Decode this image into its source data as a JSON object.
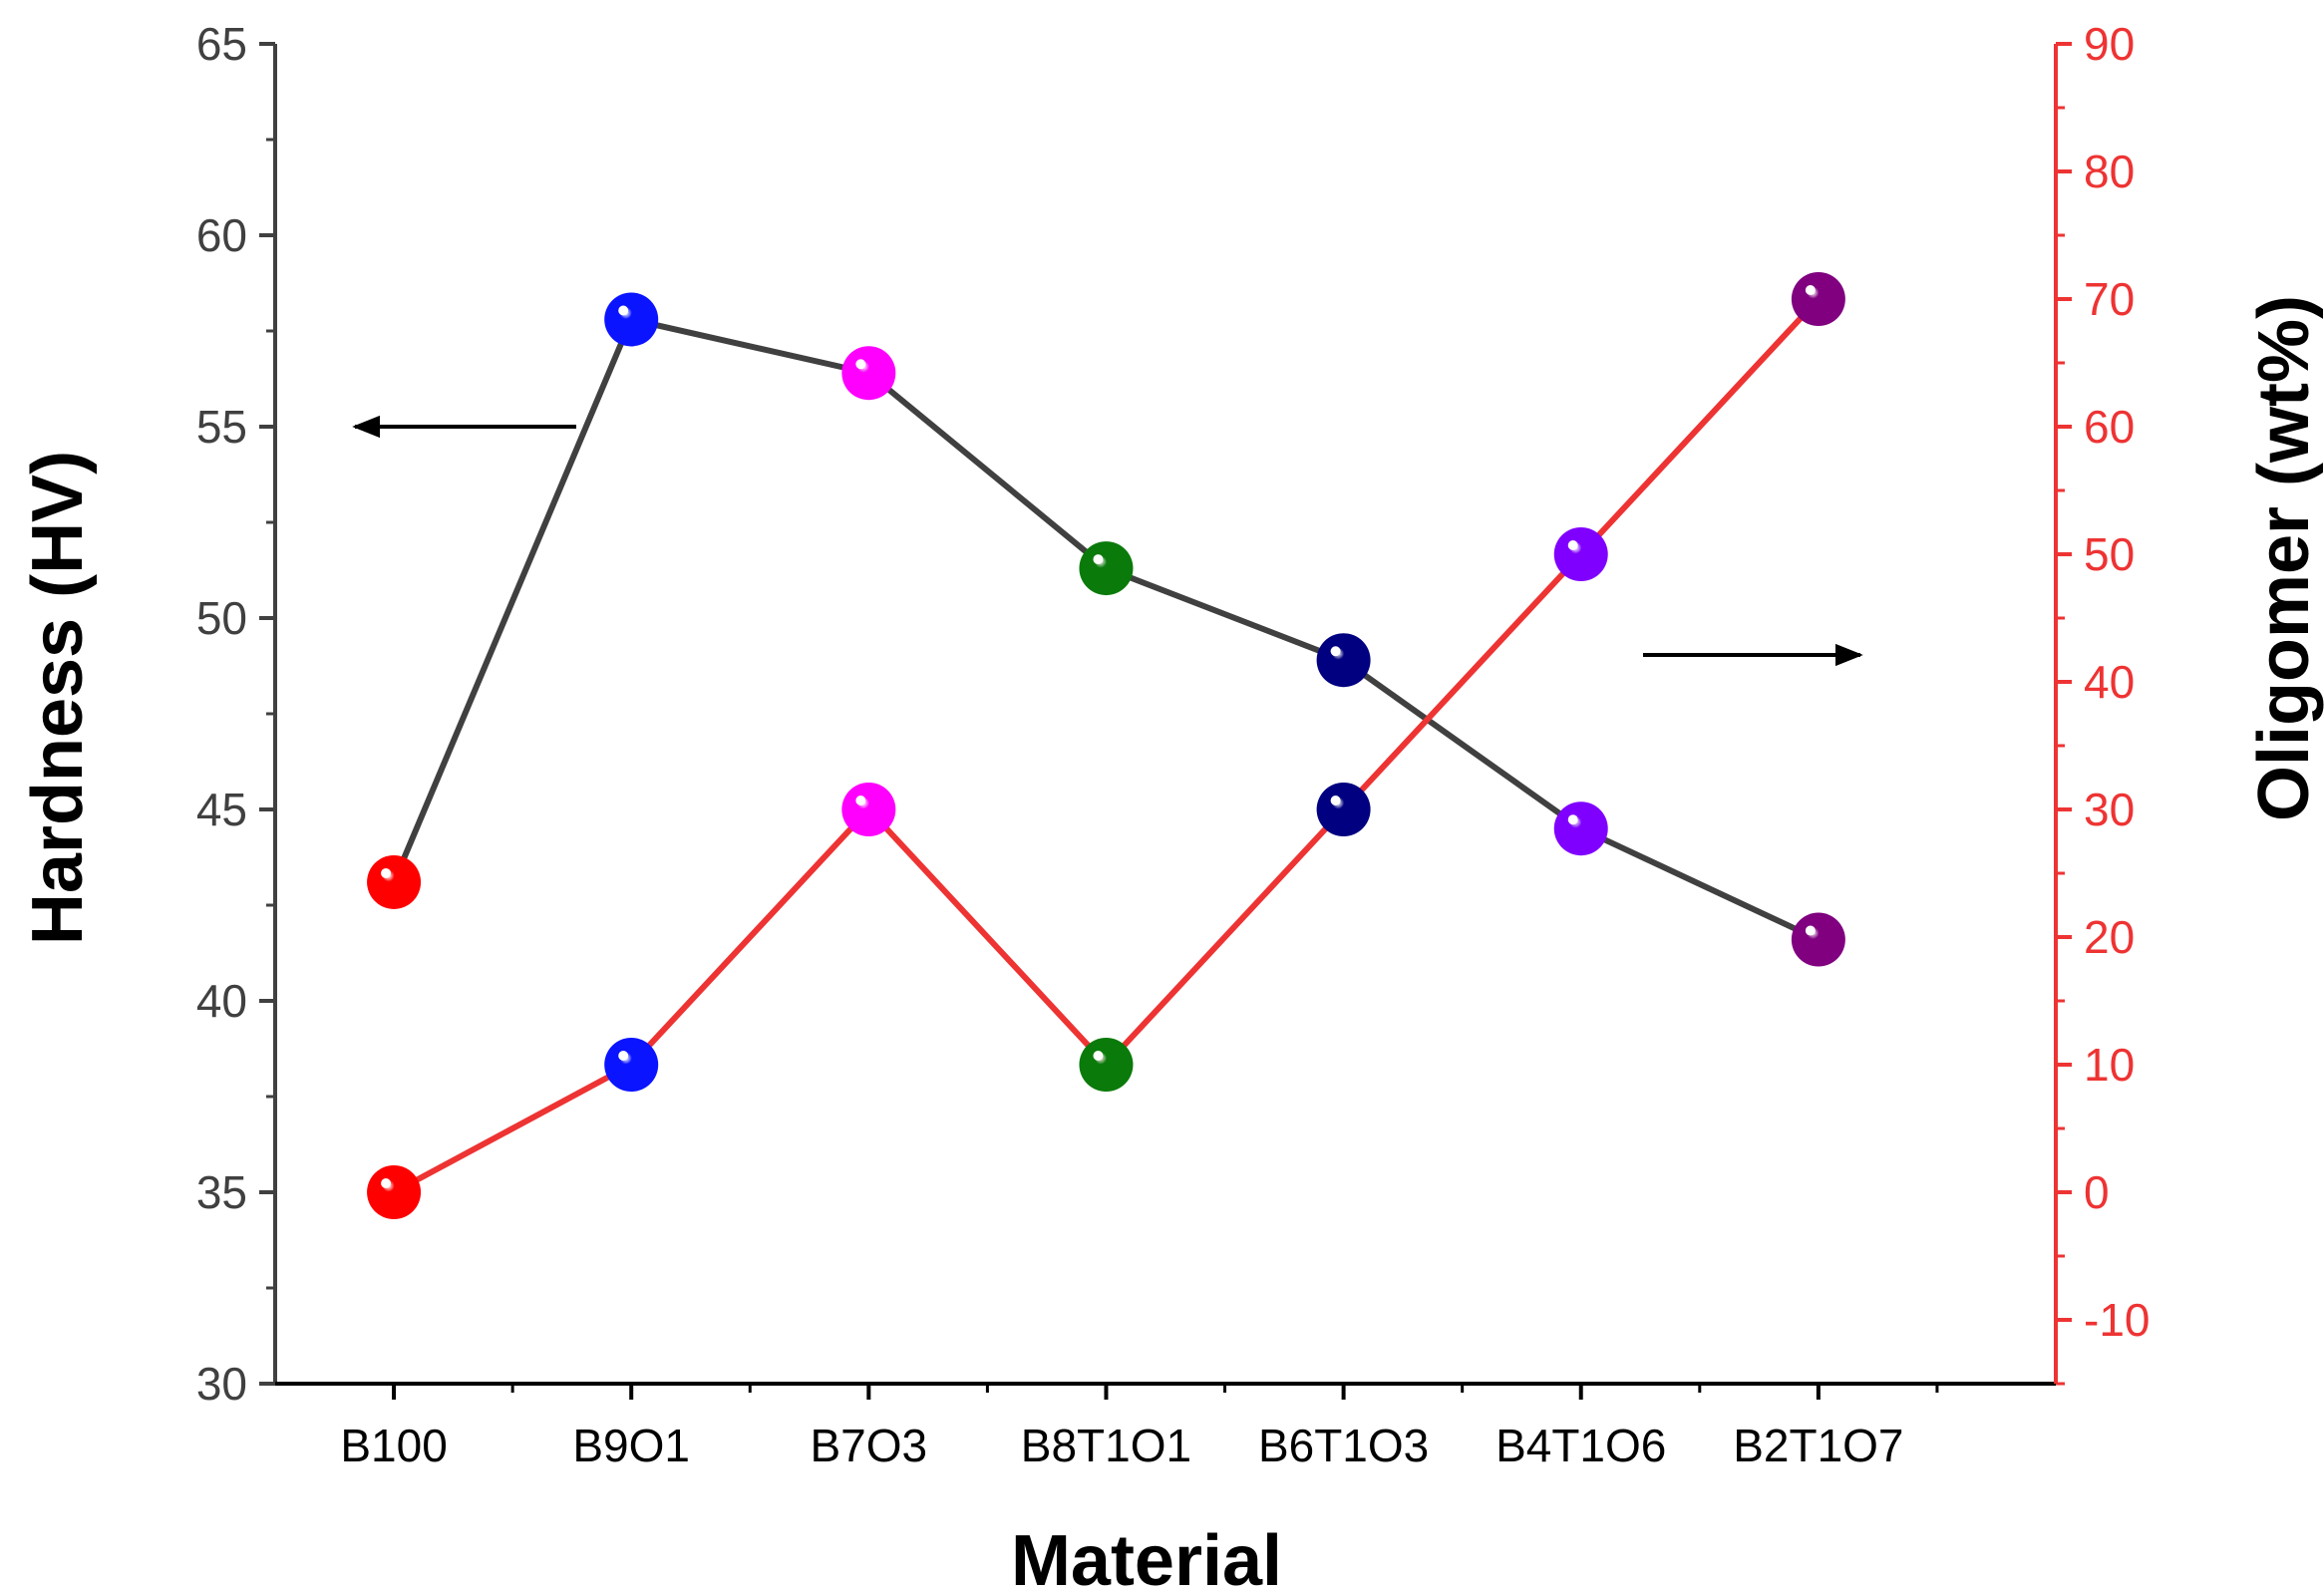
{
  "chart_data": {
    "type": "line",
    "title": "",
    "xlabel": "Material",
    "ylabel_left": "Hardness (HV)",
    "ylabel_right": "Oligomer (wt%)",
    "categories": [
      "B100",
      "B9O1",
      "B7O3",
      "B8T1O1",
      "B6T1O3",
      "B4T1O6",
      "B2T1O7"
    ],
    "point_colors": [
      "#ff0000",
      "#0a14ff",
      "#ff00ff",
      "#0a7a0a",
      "#000080",
      "#8000ff",
      "#800080"
    ],
    "left_axis": {
      "ylim": [
        30,
        65
      ],
      "ticks": [
        "30",
        "35",
        "40",
        "45",
        "50",
        "55",
        "60",
        "65"
      ],
      "color": "#404040"
    },
    "right_axis": {
      "ylim": [
        -15,
        90
      ],
      "ticks": [
        "-10",
        "0",
        "10",
        "20",
        "30",
        "40",
        "50",
        "60",
        "70",
        "80",
        "90"
      ],
      "color": "#ee3333"
    },
    "series": [
      {
        "name": "Hardness (HV)",
        "axis": "left",
        "line_color": "#404040",
        "values": [
          43.1,
          57.8,
          56.4,
          51.3,
          48.9,
          44.5,
          41.6
        ]
      },
      {
        "name": "Oligomer (wt%)",
        "axis": "right",
        "line_color": "#ee3333",
        "values": [
          0,
          10,
          30,
          10,
          30,
          50,
          70
        ]
      }
    ],
    "annotations": [
      {
        "type": "arrow",
        "direction": "left",
        "points_to": "left-axis"
      },
      {
        "type": "arrow",
        "direction": "right",
        "points_to": "right-axis"
      }
    ]
  }
}
